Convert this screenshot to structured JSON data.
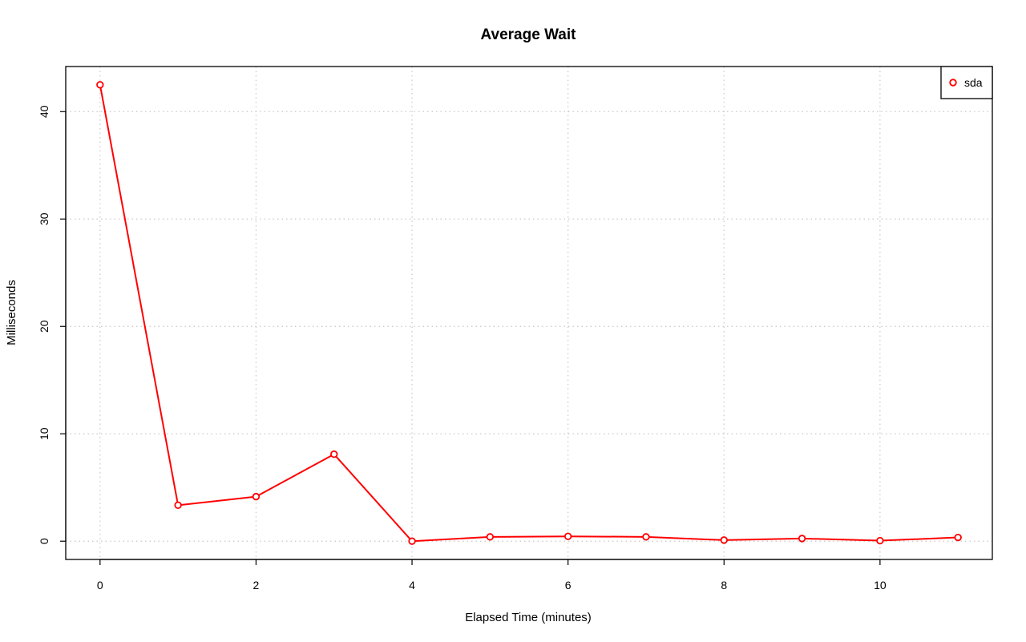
{
  "chart_data": {
    "type": "line",
    "title": "Average Wait",
    "xlabel": "Elapsed Time (minutes)",
    "ylabel": "Milliseconds",
    "xlim": [
      -0.44,
      11.44
    ],
    "ylim": [
      -1.7,
      44.2
    ],
    "x_ticks": [
      0,
      2,
      4,
      6,
      8,
      10
    ],
    "y_ticks": [
      0,
      10,
      20,
      30,
      40
    ],
    "x_grid": [
      0,
      2,
      4,
      6,
      8,
      10
    ],
    "y_grid": [
      0,
      10,
      20,
      30,
      40
    ],
    "grid": true,
    "legend_position": "top-right",
    "series": [
      {
        "name": "sda",
        "color": "#ff0000",
        "x": [
          0,
          1,
          2,
          3,
          4,
          5,
          6,
          7,
          8,
          9,
          10,
          11
        ],
        "y": [
          42.5,
          3.35,
          4.15,
          8.1,
          0.0,
          0.4,
          0.45,
          0.4,
          0.1,
          0.25,
          0.05,
          0.35
        ]
      }
    ]
  }
}
